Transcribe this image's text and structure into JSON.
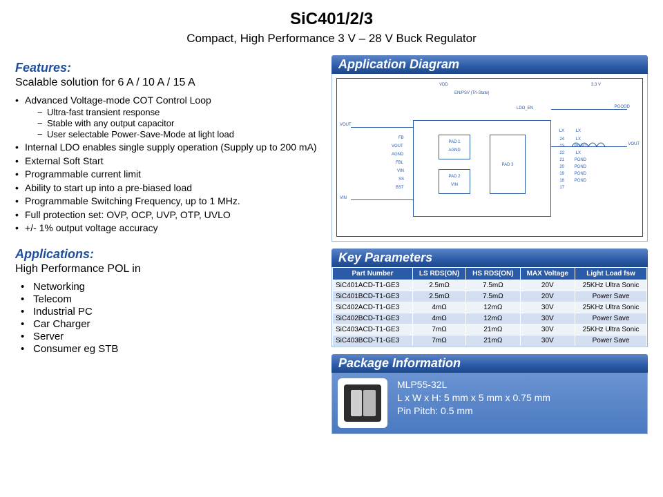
{
  "header": {
    "title": "SiC401/2/3",
    "subtitle": "Compact, High Performance 3 V – 28 V Buck Regulator"
  },
  "colors": {
    "brand_blue": "#1f4e9b",
    "panel_grad_top": "#5d85c6",
    "panel_grad_bot": "#1e4788",
    "table_header_bg": "#2a5aa8",
    "row_odd": "#eef2f9",
    "row_even": "#d3def0",
    "pkg_bg_top": "#6a93d2",
    "pkg_bg_bot": "#4b7ac0"
  },
  "features": {
    "heading": "Features:",
    "lead": "Scalable solution for 6 A / 10 A / 15 A",
    "items": [
      {
        "text": "Advanced  Voltage-mode COT Control Loop",
        "sub": [
          "Ultra-fast transient response",
          "Stable with any output capacitor",
          "User selectable Power-Save-Mode at light load"
        ]
      },
      {
        "text": "Internal LDO enables single supply operation (Supply up to 200 mA)"
      },
      {
        "text": "External Soft Start"
      },
      {
        "text": "Programmable current limit"
      },
      {
        "text": "Ability to start up into a pre-biased load"
      },
      {
        "text": "Programmable Switching Frequency, up to 1 MHz."
      },
      {
        "text": "Full protection set: OVP, OCP, UVP, OTP, UVLO"
      },
      {
        "text": "+/- 1% output voltage accuracy"
      }
    ]
  },
  "applications": {
    "heading": "Applications:",
    "lead": "High Performance POL in",
    "items": [
      "Networking",
      "Telecom",
      "Industrial PC",
      "Car Charger",
      "Server",
      "Consumer eg STB"
    ]
  },
  "diagram": {
    "heading": "Application Diagram",
    "labels": {
      "vdd": "VDD",
      "enpsv": "EN/PSV (Tri-State)",
      "ldo_en": "LDO_EN",
      "vout_l": "VOUT",
      "vin_l": "VIN",
      "pgood": "PGOOD",
      "vout_r": "VOUT",
      "pad1": "PAD 1",
      "pad2": "PAD 2",
      "pad3": "PAD 3",
      "fb": "FB",
      "agnd": "AGND",
      "fbl": "FBL",
      "vin": "VIN",
      "ss": "SS",
      "bst": "BST",
      "lx": "LX",
      "pgnd": "PGND",
      "v33": "3.3 V"
    }
  },
  "params": {
    "heading": "Key Parameters",
    "columns": [
      "Part Number",
      "LS RDS(ON)",
      "HS RDS(ON)",
      "MAX Voltage",
      "Light Load fsw"
    ],
    "rows": [
      [
        "SiC401ACD-T1-GE3",
        "2.5mΩ",
        "7.5mΩ",
        "20V",
        "25KHz Ultra Sonic"
      ],
      [
        "SiC401BCD-T1-GE3",
        "2.5mΩ",
        "7.5mΩ",
        "20V",
        "Power Save"
      ],
      [
        "SiC402ACD-T1-GE3",
        "4mΩ",
        "12mΩ",
        "30V",
        "25KHz Ultra Sonic"
      ],
      [
        "SiC402BCD-T1-GE3",
        "4mΩ",
        "12mΩ",
        "30V",
        "Power Save"
      ],
      [
        "SiC403ACD-T1-GE3",
        "7mΩ",
        "21mΩ",
        "30V",
        "25KHz Ultra Sonic"
      ],
      [
        "SiC403BCD-T1-GE3",
        "7mΩ",
        "21mΩ",
        "30V",
        "Power Save"
      ]
    ]
  },
  "package": {
    "heading": "Package Information",
    "name": "MLP55-32L",
    "dims": "L x W x H: 5 mm x 5 mm x 0.75 mm",
    "pitch": "Pin Pitch: 0.5 mm"
  }
}
